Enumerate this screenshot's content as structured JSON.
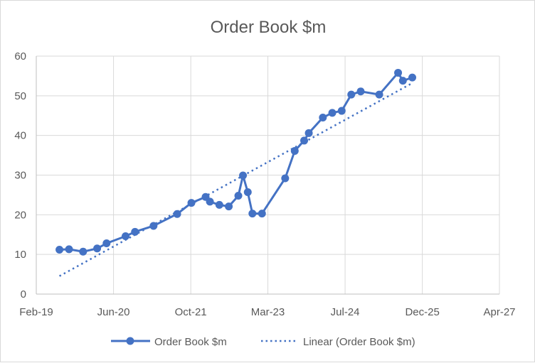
{
  "chart_data": {
    "type": "line",
    "title": "Order Book $m",
    "xlabel": "",
    "ylabel": "",
    "x_axis_type": "date",
    "xlim": [
      "2019-02-01",
      "2027-04-18"
    ],
    "x_ticks": [
      {
        "date": "2019-02-01",
        "label": "Feb-19"
      },
      {
        "date": "2020-06-15",
        "label": "Jun-20"
      },
      {
        "date": "2021-10-28",
        "label": "Oct-21"
      },
      {
        "date": "2023-03-11",
        "label": "Mar-23"
      },
      {
        "date": "2024-07-23",
        "label": "Jul-24"
      },
      {
        "date": "2025-12-05",
        "label": "Dec-25"
      },
      {
        "date": "2027-04-18",
        "label": "Apr-27"
      }
    ],
    "ylim": [
      0,
      60
    ],
    "y_ticks": [
      0,
      10,
      20,
      30,
      40,
      50,
      60
    ],
    "grid": true,
    "legend_position": "bottom",
    "series": [
      {
        "name": "Order Book $m",
        "style": "line-with-markers",
        "color": "#4472c4",
        "x": [
          "2019-07-01",
          "2019-09-01",
          "2019-12-01",
          "2020-03-01",
          "2020-05-01",
          "2020-09-01",
          "2020-11-01",
          "2021-03-01",
          "2021-08-01",
          "2021-11-01",
          "2022-02-01",
          "2022-03-01",
          "2022-05-01",
          "2022-07-01",
          "2022-09-01",
          "2022-10-01",
          "2022-11-01",
          "2022-12-01",
          "2023-02-01",
          "2023-07-01",
          "2023-09-01",
          "2023-11-01",
          "2023-12-01",
          "2024-03-01",
          "2024-05-01",
          "2024-07-01",
          "2024-09-01",
          "2024-11-01",
          "2025-03-01",
          "2025-07-01",
          "2025-08-01",
          "2025-10-01"
        ],
        "values": [
          11.2,
          11.3,
          10.7,
          11.5,
          12.8,
          14.6,
          15.7,
          17.2,
          20.2,
          23.0,
          24.5,
          23.3,
          22.5,
          22.1,
          24.8,
          29.9,
          25.7,
          20.3,
          20.3,
          29.2,
          36.1,
          38.7,
          40.6,
          44.5,
          45.7,
          46.2,
          50.3,
          51.1,
          50.3,
          55.8,
          53.8,
          54.6
        ]
      },
      {
        "name": "Linear (Order Book $m)",
        "style": "dotted-trendline",
        "color": "#4472c4"
      }
    ]
  }
}
